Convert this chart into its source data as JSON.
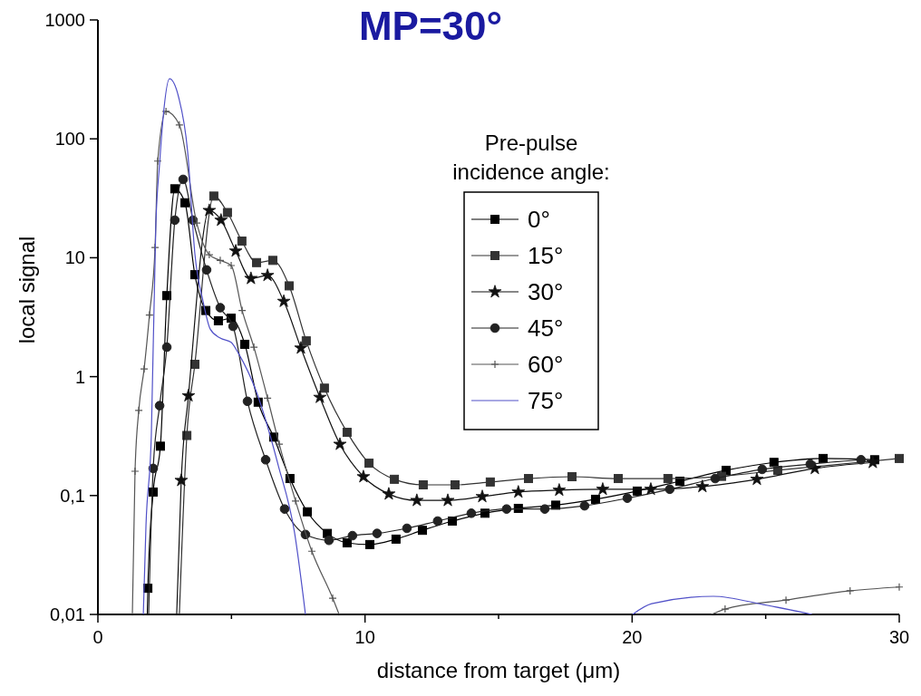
{
  "chart_data": {
    "type": "line",
    "title": "MP=30°",
    "xlabel": "distance from target (μm)",
    "ylabel": "local signal",
    "legend_title": "Pre-pulse incidence angle:",
    "legend": "top right",
    "log": "y",
    "grid": false,
    "line_style": "solid",
    "xlim": [
      0,
      30
    ],
    "xticks": [
      0,
      {
        "value": 5,
        "label": null
      },
      10,
      {
        "value": 15,
        "label": null
      },
      20,
      {
        "value": 25,
        "label": null
      },
      30
    ],
    "ylim": [
      0.01,
      1000
    ],
    "yticks": [
      {
        "value": 0.01,
        "label": "0,01"
      },
      {
        "value": 0.1,
        "label": "0,1"
      },
      1,
      10,
      100,
      1000
    ],
    "series": [
      {
        "name": "0°",
        "color": "#000000",
        "marker": "square",
        "x": [
          1.85,
          1.87,
          2.07,
          2.34,
          2.58,
          2.88,
          3.26,
          3.63,
          4.04,
          4.51,
          4.99,
          5.5,
          6.0,
          6.58,
          7.19,
          7.84,
          8.59,
          9.33,
          10.18,
          11.16,
          12.15,
          13.27,
          14.49,
          15.74,
          17.14,
          18.63,
          20.19,
          21.79,
          23.52,
          25.31,
          27.15,
          29.08
        ],
        "values": [
          0.01,
          0.0166,
          0.107,
          0.26,
          4.8,
          38,
          29,
          7.2,
          3.6,
          2.95,
          3.1,
          1.87,
          0.61,
          0.31,
          0.139,
          0.073,
          0.048,
          0.04,
          0.0387,
          0.043,
          0.051,
          0.061,
          0.071,
          0.078,
          0.083,
          0.093,
          0.109,
          0.132,
          0.163,
          0.19,
          0.205,
          0.2
        ]
      },
      {
        "name": "15°",
        "color": "#333333",
        "marker": "square",
        "x": [
          3.05,
          3.33,
          3.63,
          4.34,
          4.85,
          5.39,
          5.94,
          6.55,
          7.16,
          7.8,
          8.48,
          9.33,
          10.15,
          11.1,
          12.18,
          13.37,
          14.69,
          16.12,
          17.75,
          19.48,
          21.34,
          23.35,
          25.45,
          30
        ],
        "values": [
          0.01,
          0.32,
          1.27,
          33,
          24,
          13.8,
          9.1,
          9.5,
          5.8,
          2.0,
          0.8,
          0.34,
          0.187,
          0.137,
          0.123,
          0.123,
          0.13,
          0.139,
          0.144,
          0.139,
          0.139,
          0.145,
          0.163,
          0.205
        ]
      },
      {
        "name": "30°",
        "color": "#111111",
        "marker": "star",
        "x": [
          2.95,
          3.12,
          3.39,
          4.17,
          4.61,
          5.16,
          5.73,
          6.35,
          6.96,
          7.6,
          8.31,
          9.06,
          9.94,
          10.89,
          11.94,
          13.1,
          14.39,
          15.74,
          17.27,
          18.9,
          20.7,
          22.63,
          24.67,
          26.84,
          29.01
        ],
        "values": [
          0.01,
          0.134,
          0.69,
          25,
          20.7,
          11.4,
          6.7,
          7.1,
          4.3,
          1.74,
          0.67,
          0.27,
          0.144,
          0.103,
          0.091,
          0.091,
          0.098,
          0.107,
          0.111,
          0.113,
          0.113,
          0.119,
          0.137,
          0.169,
          0.19
        ]
      },
      {
        "name": "45°",
        "color": "#222222",
        "marker": "circle",
        "x": [
          1.9,
          2.07,
          2.31,
          2.58,
          2.88,
          3.19,
          3.56,
          4.07,
          4.58,
          5.06,
          5.6,
          6.28,
          6.99,
          7.77,
          8.65,
          9.53,
          10.45,
          11.57,
          12.72,
          13.98,
          15.3,
          16.73,
          18.22,
          19.82,
          21.41,
          23.11,
          24.87,
          26.67,
          28.57
        ],
        "values": [
          0.01,
          0.169,
          0.57,
          1.77,
          20.7,
          45.6,
          20.7,
          7.9,
          3.8,
          2.65,
          0.62,
          0.2,
          0.077,
          0.047,
          0.042,
          0.046,
          0.048,
          0.053,
          0.061,
          0.071,
          0.077,
          0.077,
          0.082,
          0.095,
          0.113,
          0.139,
          0.166,
          0.184,
          0.2
        ]
      },
      {
        "name": "60°",
        "color": "#555555",
        "marker": "cross",
        "x": [
          1.29,
          1.39,
          1.53,
          1.73,
          1.93,
          2.14,
          2.24,
          2.55,
          3.05,
          3.7,
          4.17,
          4.58,
          4.99,
          5.4,
          5.84,
          6.35,
          6.79,
          7.4,
          8.01,
          8.79,
          9.03,
          15,
          22.97,
          23.48,
          25.76,
          28.16,
          30
        ],
        "values": [
          0.01,
          0.16,
          0.52,
          1.16,
          3.3,
          12.2,
          65,
          170,
          131,
          19.6,
          10.6,
          9.5,
          8.6,
          3.6,
          1.77,
          0.66,
          0.27,
          0.09,
          0.034,
          0.0137,
          0.01,
          null,
          0.01,
          0.0111,
          0.0132,
          0.0158,
          0.017
        ]
      },
      {
        "name": "75°",
        "color": "#5050c8",
        "marker": "none",
        "x": [
          1.7,
          1.8,
          2.0,
          2.17,
          2.31,
          2.44,
          2.68,
          3.02,
          3.36,
          3.63,
          3.94,
          4.21,
          4.58,
          4.99,
          5.26,
          5.94,
          6.75,
          7.36,
          7.77,
          15,
          20.02,
          20.73,
          23.04,
          24.91,
          26.74
        ],
        "values": [
          0.01,
          0.056,
          0.32,
          19.3,
          62,
          150,
          320,
          225,
          78,
          10.8,
          4.27,
          2.5,
          2.11,
          1.94,
          1.57,
          0.74,
          0.18,
          0.049,
          0.01,
          null,
          0.01,
          0.0123,
          0.0142,
          0.0121,
          0.01
        ]
      }
    ]
  }
}
